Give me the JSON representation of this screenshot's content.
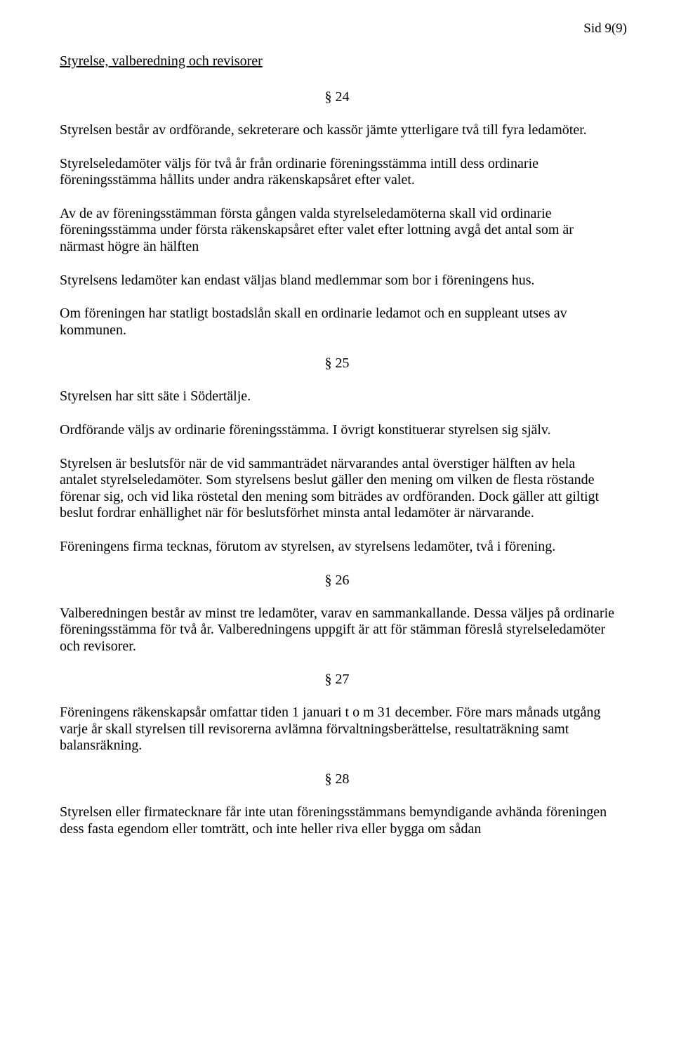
{
  "page_marker": "Sid 9(9)",
  "heading": "Styrelse, valberedning och revisorer",
  "s24": {
    "num": "§ 24",
    "p1": "Styrelsen består av ordförande, sekreterare och kassör jämte ytterligare två till fyra ledamöter.",
    "p2": "Styrelseledamöter väljs för två år från ordinarie föreningsstämma intill dess ordinarie föreningsstämma hållits under andra räkenskapsåret efter valet.",
    "p3": "Av de av föreningsstämman första gången valda styrelseledamöterna skall vid ordinarie föreningsstämma under första räkenskapsåret efter valet efter lottning avgå det antal som är närmast högre än hälften",
    "p4": "Styrelsens ledamöter kan endast väljas bland medlemmar som bor i föreningens hus.",
    "p5": "Om föreningen har statligt bostadslån skall en ordinarie ledamot och en suppleant utses av kommunen."
  },
  "s25": {
    "num": "§ 25",
    "p1": "Styrelsen har sitt säte i Södertälje.",
    "p2": "Ordförande väljs av ordinarie föreningsstämma. I övrigt konstituerar styrelsen sig själv.",
    "p3": "Styrelsen är beslutsför när de vid sammanträdet närvarandes antal överstiger hälften av hela antalet styrelseledamöter. Som styrelsens beslut gäller den mening om vilken de flesta röstande förenar sig, och vid lika röstetal den mening som biträdes av ordföranden. Dock gäller att giltigt beslut fordrar enhällighet när för beslutsförhet minsta antal ledamöter är närvarande.",
    "p4": "Föreningens firma tecknas, förutom av styrelsen, av styrelsens ledamöter, två i förening."
  },
  "s26": {
    "num": "§ 26",
    "p1": "Valberedningen består av minst tre ledamöter, varav en sammankallande. Dessa väljes på ordinarie föreningsstämma för två år. Valberedningens uppgift är att för stämman föreslå styrelseledamöter och revisorer."
  },
  "s27": {
    "num": "§ 27",
    "p1": "Föreningens räkenskapsår omfattar tiden 1 januari t o m 31 december. Före mars månads utgång varje år skall styrelsen till revisorerna avlämna förvaltningsberättelse, resultaträkning samt balansräkning."
  },
  "s28": {
    "num": "§ 28",
    "p1": "Styrelsen eller firmatecknare får inte utan föreningsstämmans bemyndigande avhända föreningen dess fasta egendom eller tomträtt, och inte heller riva eller bygga om sådan"
  }
}
